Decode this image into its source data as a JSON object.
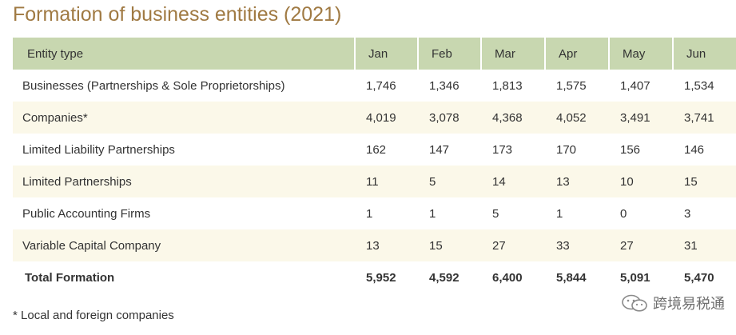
{
  "title": "Formation of business entities (2021)",
  "table": {
    "headers": [
      "Entity type",
      "Jan",
      "Feb",
      "Mar",
      "Apr",
      "May",
      "Jun"
    ],
    "rows": [
      {
        "label": "Businesses (Partnerships & Sole Proprietorships)",
        "values": [
          "1,746",
          "1,346",
          "1,813",
          "1,575",
          "1,407",
          "1,534"
        ]
      },
      {
        "label": "Companies*",
        "values": [
          "4,019",
          "3,078",
          "4,368",
          "4,052",
          "3,491",
          "3,741"
        ]
      },
      {
        "label": "Limited Liability Partnerships",
        "values": [
          "162",
          "147",
          "173",
          "170",
          "156",
          "146"
        ]
      },
      {
        "label": "Limited Partnerships",
        "values": [
          "11",
          "5",
          "14",
          "13",
          "10",
          "15"
        ]
      },
      {
        "label": "Public Accounting Firms",
        "values": [
          "1",
          "1",
          "5",
          "1",
          "0",
          "3"
        ]
      },
      {
        "label": "Variable Capital Company",
        "values": [
          "13",
          "15",
          "27",
          "33",
          "27",
          "31"
        ]
      }
    ],
    "total": {
      "label": "Total Formation",
      "values": [
        "5,952",
        "4,592",
        "6,400",
        "5,844",
        "5,091",
        "5,470"
      ]
    }
  },
  "footnote": "* Local and foreign companies",
  "watermark": {
    "text": "跨境易税通",
    "icon": "wechat-icon"
  },
  "colors": {
    "title": "#a07a43",
    "header_bg": "#c8d7b0",
    "alt_row_bg": "#fbf8e9"
  }
}
